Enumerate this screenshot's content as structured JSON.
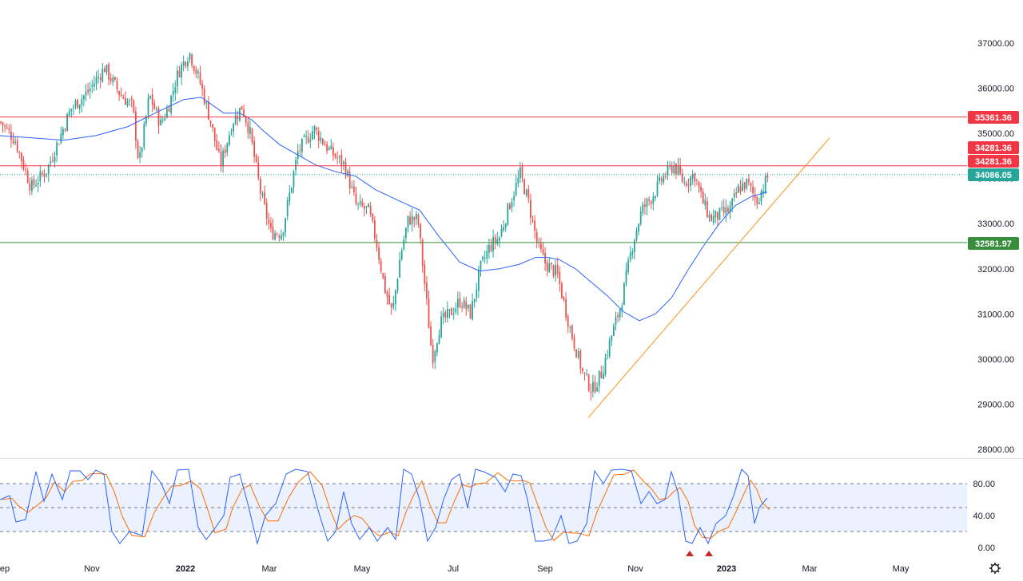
{
  "chart_data": [
    {
      "type": "candlestick",
      "title": "",
      "xlabel": "",
      "ylabel": "",
      "ylim": [
        27600,
        37600
      ],
      "y_ticks": [
        "37000.00",
        "36000.00",
        "35000.00",
        "34000.00",
        "33000.00",
        "32000.00",
        "31000.00",
        "30000.00",
        "29000.00",
        "28000.00"
      ],
      "x_ticks": [
        "ep",
        "Nov",
        "2022",
        "Mar",
        "May",
        "Jul",
        "Sep",
        "Nov",
        "2023",
        "Mar",
        "May"
      ],
      "grid": false,
      "close_path": [
        [
          0,
          35250
        ],
        [
          18,
          34850
        ],
        [
          38,
          33800
        ],
        [
          58,
          34200
        ],
        [
          88,
          35550
        ],
        [
          108,
          35900
        ],
        [
          130,
          36450
        ],
        [
          150,
          35850
        ],
        [
          165,
          35600
        ],
        [
          173,
          34300
        ],
        [
          186,
          35850
        ],
        [
          200,
          35200
        ],
        [
          210,
          35600
        ],
        [
          222,
          36350
        ],
        [
          236,
          36800
        ],
        [
          250,
          36100
        ],
        [
          262,
          35300
        ],
        [
          275,
          34300
        ],
        [
          290,
          35250
        ],
        [
          302,
          35600
        ],
        [
          312,
          35000
        ],
        [
          325,
          33700
        ],
        [
          338,
          32800
        ],
        [
          352,
          32800
        ],
        [
          372,
          34600
        ],
        [
          392,
          35100
        ],
        [
          412,
          34600
        ],
        [
          430,
          34300
        ],
        [
          445,
          33400
        ],
        [
          460,
          33300
        ],
        [
          470,
          32600
        ],
        [
          480,
          31600
        ],
        [
          490,
          31000
        ],
        [
          500,
          32300
        ],
        [
          510,
          33100
        ],
        [
          522,
          33100
        ],
        [
          532,
          31400
        ],
        [
          540,
          30000
        ],
        [
          550,
          30800
        ],
        [
          562,
          31000
        ],
        [
          575,
          31300
        ],
        [
          588,
          31000
        ],
        [
          600,
          32000
        ],
        [
          612,
          32500
        ],
        [
          624,
          32700
        ],
        [
          638,
          33500
        ],
        [
          650,
          34100
        ],
        [
          660,
          33500
        ],
        [
          672,
          32500
        ],
        [
          682,
          32100
        ],
        [
          696,
          31900
        ],
        [
          712,
          30700
        ],
        [
          728,
          29700
        ],
        [
          740,
          29300
        ],
        [
          752,
          29700
        ],
        [
          764,
          30500
        ],
        [
          776,
          31200
        ],
        [
          790,
          32500
        ],
        [
          802,
          33300
        ],
        [
          815,
          33600
        ],
        [
          828,
          34000
        ],
        [
          842,
          34300
        ],
        [
          855,
          33900
        ],
        [
          868,
          34100
        ],
        [
          878,
          33500
        ],
        [
          888,
          33100
        ],
        [
          900,
          33200
        ],
        [
          912,
          33300
        ],
        [
          924,
          33800
        ],
        [
          934,
          33900
        ],
        [
          946,
          33500
        ],
        [
          960,
          34050
        ]
      ],
      "ma_path": [
        [
          0,
          34950
        ],
        [
          40,
          34900
        ],
        [
          80,
          34850
        ],
        [
          120,
          34950
        ],
        [
          160,
          35150
        ],
        [
          200,
          35500
        ],
        [
          230,
          35750
        ],
        [
          252,
          35800
        ],
        [
          280,
          35450
        ],
        [
          300,
          35450
        ],
        [
          315,
          35300
        ],
        [
          330,
          35050
        ],
        [
          350,
          34750
        ],
        [
          375,
          34500
        ],
        [
          395,
          34300
        ],
        [
          420,
          34150
        ],
        [
          445,
          34050
        ],
        [
          470,
          33750
        ],
        [
          500,
          33500
        ],
        [
          525,
          33300
        ],
        [
          550,
          32700
        ],
        [
          575,
          32150
        ],
        [
          600,
          31950
        ],
        [
          625,
          32000
        ],
        [
          650,
          32100
        ],
        [
          670,
          32250
        ],
        [
          686,
          32250
        ],
        [
          700,
          32200
        ],
        [
          720,
          32000
        ],
        [
          740,
          31700
        ],
        [
          760,
          31400
        ],
        [
          780,
          31050
        ],
        [
          800,
          30850
        ],
        [
          820,
          31000
        ],
        [
          840,
          31350
        ],
        [
          860,
          31950
        ],
        [
          880,
          32500
        ],
        [
          900,
          33000
        ],
        [
          920,
          33400
        ],
        [
          940,
          33600
        ],
        [
          960,
          33700
        ]
      ],
      "hlines": [
        {
          "value": 35361.36,
          "label": "35361.36",
          "color": "#f23645"
        },
        {
          "value": 34281.36,
          "label": "34281.36",
          "color": "#f23645"
        },
        {
          "value": 32581.97,
          "label": "32581.97",
          "color": "#388e3c"
        }
      ],
      "last_price": {
        "value": 34086.05,
        "label": "34086.05",
        "color": "#26a69a"
      },
      "extra_label": {
        "label": "34281.36",
        "color": "#f23645"
      },
      "trendline": {
        "from": [
          736,
          28700
        ],
        "to": [
          1038,
          34900
        ],
        "color": "#f7931a"
      },
      "colors": {
        "up": "#26a69a",
        "down": "#ef5350",
        "ma": "#2962ff"
      }
    },
    {
      "type": "line",
      "title": "",
      "ylim": [
        -5,
        105
      ],
      "y_ticks": [
        "80.00",
        "40.00",
        "0.00"
      ],
      "band": [
        20,
        80
      ],
      "k_series": [
        [
          0,
          60
        ],
        [
          12,
          65
        ],
        [
          20,
          32
        ],
        [
          32,
          35
        ],
        [
          45,
          95
        ],
        [
          55,
          58
        ],
        [
          65,
          92
        ],
        [
          78,
          60
        ],
        [
          88,
          96
        ],
        [
          100,
          96
        ],
        [
          110,
          85
        ],
        [
          120,
          97
        ],
        [
          130,
          92
        ],
        [
          140,
          20
        ],
        [
          150,
          5
        ],
        [
          162,
          20
        ],
        [
          178,
          15
        ],
        [
          190,
          96
        ],
        [
          202,
          80
        ],
        [
          212,
          55
        ],
        [
          222,
          97
        ],
        [
          236,
          98
        ],
        [
          248,
          25
        ],
        [
          258,
          10
        ],
        [
          266,
          20
        ],
        [
          280,
          40
        ],
        [
          288,
          88
        ],
        [
          300,
          92
        ],
        [
          310,
          55
        ],
        [
          322,
          5
        ],
        [
          332,
          40
        ],
        [
          345,
          55
        ],
        [
          358,
          92
        ],
        [
          370,
          98
        ],
        [
          385,
          95
        ],
        [
          400,
          40
        ],
        [
          410,
          8
        ],
        [
          420,
          20
        ],
        [
          430,
          70
        ],
        [
          440,
          30
        ],
        [
          450,
          10
        ],
        [
          462,
          25
        ],
        [
          472,
          8
        ],
        [
          485,
          25
        ],
        [
          495,
          10
        ],
        [
          505,
          98
        ],
        [
          515,
          92
        ],
        [
          525,
          60
        ],
        [
          535,
          8
        ],
        [
          545,
          25
        ],
        [
          555,
          60
        ],
        [
          565,
          85
        ],
        [
          575,
          92
        ],
        [
          585,
          50
        ],
        [
          595,
          98
        ],
        [
          605,
          95
        ],
        [
          620,
          88
        ],
        [
          632,
          70
        ],
        [
          642,
          92
        ],
        [
          652,
          90
        ],
        [
          660,
          60
        ],
        [
          670,
          8
        ],
        [
          680,
          8
        ],
        [
          690,
          10
        ],
        [
          702,
          40
        ],
        [
          712,
          5
        ],
        [
          722,
          8
        ],
        [
          734,
          30
        ],
        [
          744,
          96
        ],
        [
          755,
          80
        ],
        [
          765,
          97
        ],
        [
          778,
          98
        ],
        [
          790,
          96
        ],
        [
          802,
          55
        ],
        [
          812,
          70
        ],
        [
          822,
          55
        ],
        [
          832,
          60
        ],
        [
          840,
          95
        ],
        [
          848,
          70
        ],
        [
          858,
          8
        ],
        [
          866,
          5
        ],
        [
          876,
          25
        ],
        [
          886,
          5
        ],
        [
          896,
          30
        ],
        [
          908,
          40
        ],
        [
          918,
          65
        ],
        [
          928,
          98
        ],
        [
          936,
          90
        ],
        [
          944,
          30
        ],
        [
          950,
          50
        ],
        [
          960,
          62
        ]
      ],
      "colors": {
        "k": "#2962ff",
        "d": "#ff6d00",
        "band": "#2962ff"
      }
    }
  ]
}
